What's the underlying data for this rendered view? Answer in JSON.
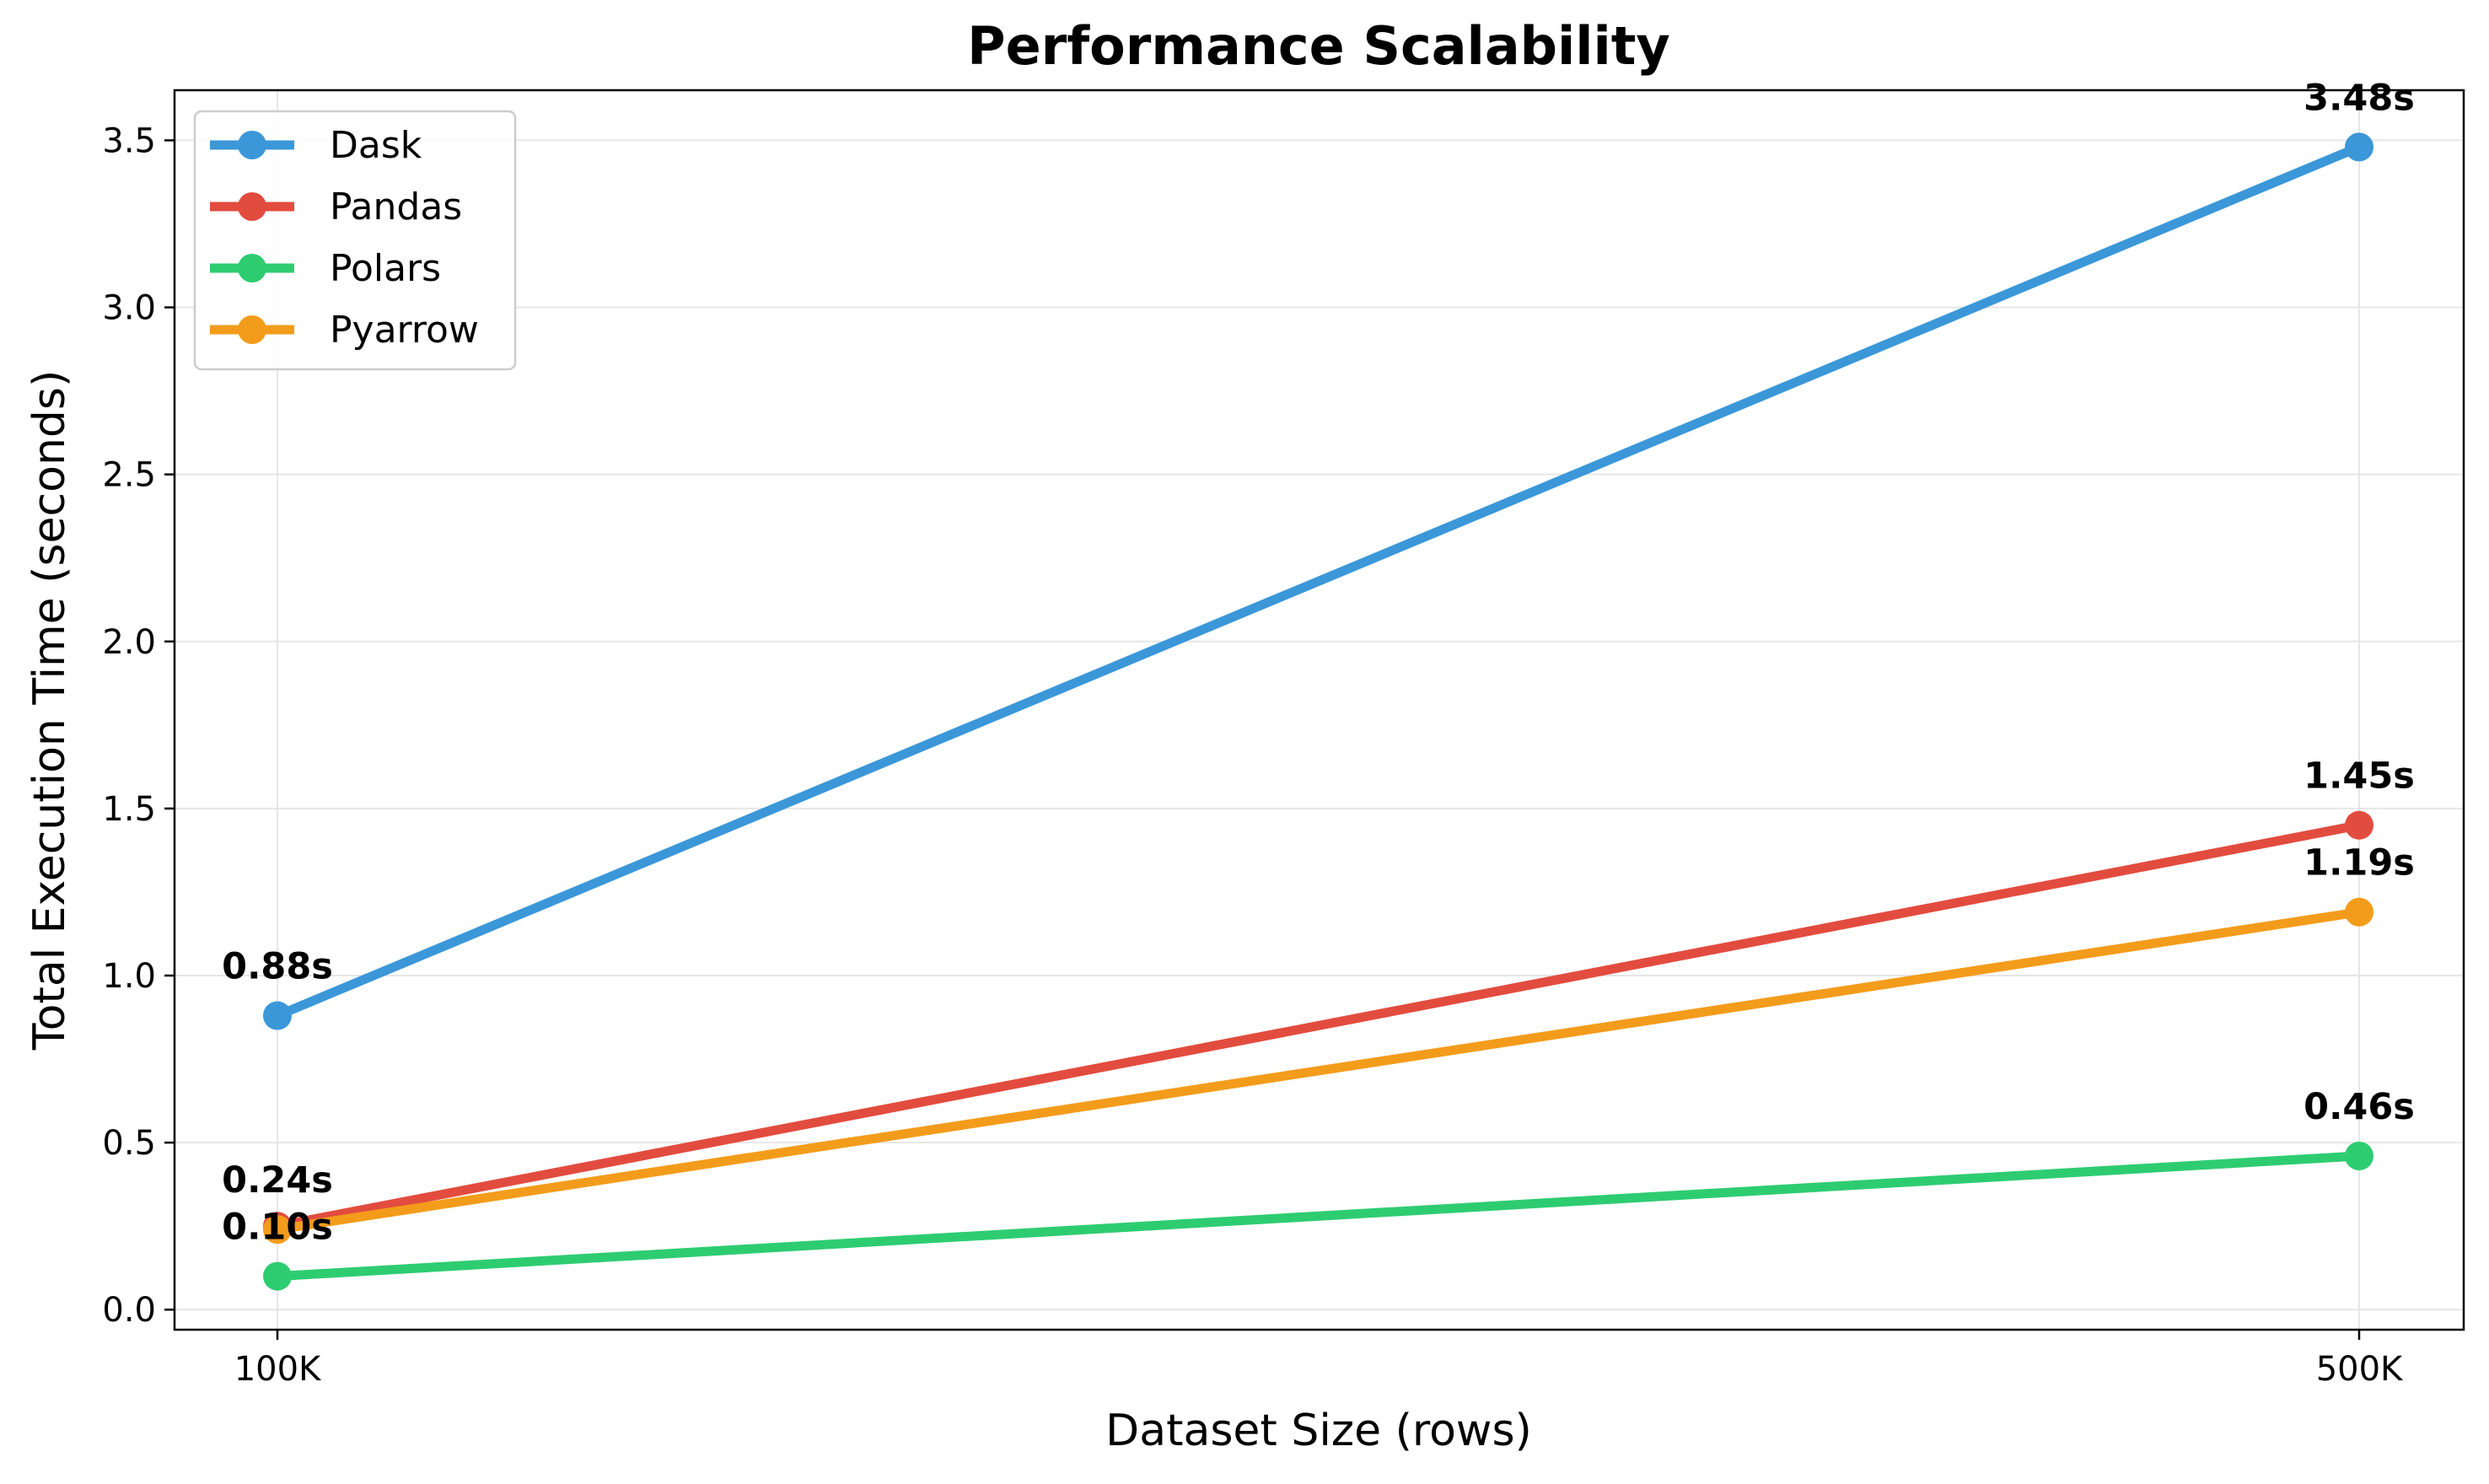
{
  "chart_data": {
    "type": "line",
    "title": "Performance Scalability",
    "xlabel": "Dataset Size (rows)",
    "ylabel": "Total Execution Time (seconds)",
    "categories": [
      "100K",
      "500K"
    ],
    "ylim": [
      -0.06,
      3.65
    ],
    "yticks": [
      0.0,
      0.5,
      1.0,
      1.5,
      2.0,
      2.5,
      3.0,
      3.5
    ],
    "ytick_labels": [
      "0.0",
      "0.5",
      "1.0",
      "1.5",
      "2.0",
      "2.5",
      "3.0",
      "3.5"
    ],
    "grid": true,
    "legend_position": "top-left",
    "series": [
      {
        "name": "Dask",
        "color": "#3b97d8",
        "values": [
          0.88,
          3.48
        ],
        "labels": [
          "0.88s",
          "3.48s"
        ]
      },
      {
        "name": "Pandas",
        "color": "#e24c3f",
        "values": [
          0.25,
          1.45
        ],
        "labels": [
          "",
          "1.45s"
        ]
      },
      {
        "name": "Polars",
        "color": "#2ecc71",
        "values": [
          0.1,
          0.46
        ],
        "labels": [
          "0.10s",
          "0.46s"
        ]
      },
      {
        "name": "Pyarrow",
        "color": "#f39c1b",
        "values": [
          0.24,
          1.19
        ],
        "labels": [
          "0.24s",
          "1.19s"
        ]
      }
    ]
  }
}
